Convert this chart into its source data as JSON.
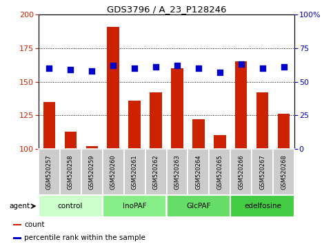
{
  "title": "GDS3796 / A_23_P128246",
  "samples": [
    "GSM520257",
    "GSM520258",
    "GSM520259",
    "GSM520260",
    "GSM520261",
    "GSM520262",
    "GSM520263",
    "GSM520264",
    "GSM520265",
    "GSM520266",
    "GSM520267",
    "GSM520268"
  ],
  "counts": [
    135,
    113,
    102,
    191,
    136,
    142,
    160,
    122,
    110,
    165,
    142,
    126
  ],
  "percentiles": [
    60,
    59,
    58,
    62,
    60,
    61,
    62,
    60,
    57,
    63,
    60,
    61
  ],
  "groups": [
    {
      "label": "control",
      "start": 0,
      "end": 3,
      "color": "#ccffcc"
    },
    {
      "label": "InoPAF",
      "start": 3,
      "end": 6,
      "color": "#88ee88"
    },
    {
      "label": "GlcPAF",
      "start": 6,
      "end": 9,
      "color": "#66dd66"
    },
    {
      "label": "edelfosine",
      "start": 9,
      "end": 12,
      "color": "#44cc44"
    }
  ],
  "ylim_left": [
    100,
    200
  ],
  "ylim_right": [
    0,
    100
  ],
  "yticks_left": [
    100,
    125,
    150,
    175,
    200
  ],
  "yticks_right": [
    0,
    25,
    50,
    75,
    100
  ],
  "bar_color": "#cc2200",
  "dot_color": "#0000cc",
  "bar_width": 0.55,
  "dot_size": 40,
  "legend_items": [
    {
      "label": "count",
      "color": "#cc2200"
    },
    {
      "label": "percentile rank within the sample",
      "color": "#0000cc"
    }
  ],
  "tick_bg_color": "#cccccc",
  "agent_label": "agent",
  "figsize": [
    4.83,
    3.54
  ],
  "dpi": 100
}
